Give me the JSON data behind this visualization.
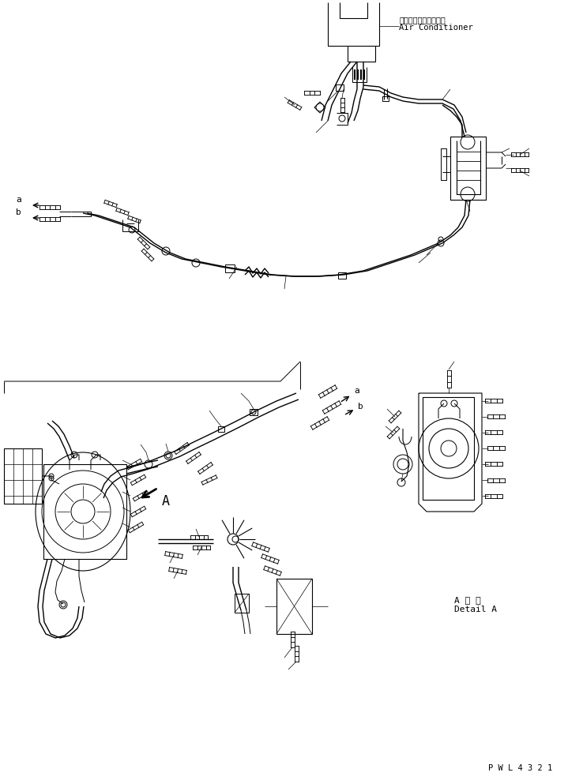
{
  "bg_color": "#ffffff",
  "line_color": "#000000",
  "text_color": "#000000",
  "label_ac_jp": "エアーコンディショナ",
  "label_ac_en": "Air Conditioner",
  "label_detail_jp": "A 詳 細",
  "label_detail_en": "Detail A",
  "label_pwl": "P W L 4 3 2 1",
  "label_A": "A",
  "label_a1": "a",
  "label_b1": "b",
  "label_a2": "a",
  "label_b2": "b",
  "figsize": [
    7.38,
    9.88
  ],
  "dpi": 100,
  "xlim": [
    0,
    738
  ],
  "ylim": [
    0,
    988
  ]
}
